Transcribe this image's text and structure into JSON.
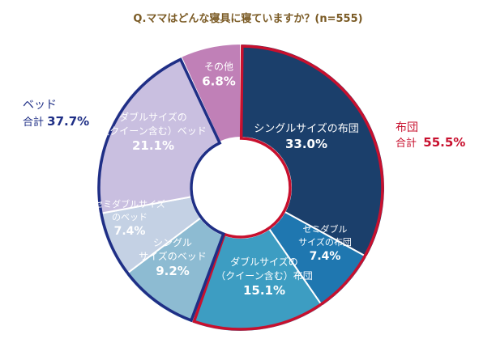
{
  "chart_data": {
    "type": "pie",
    "title": "Q.ママはどんな寝具に寝ていますか？(n=555)",
    "unit": "%",
    "categories": [
      "シングルサイズの布団",
      "セミダブルサイズの布団",
      "ダブルサイズの（クイーン含む）布団",
      "シングルサイズのベッド",
      "セミダブルサイズのベッド",
      "ダブルサイズの（クイーン含む）ベッド",
      "その他"
    ],
    "values": [
      33.0,
      7.4,
      15.1,
      9.2,
      7.4,
      21.1,
      6.8
    ],
    "slices": [
      {
        "label_lines": [
          "シングルサイズの布団"
        ],
        "value_text": "33.0%",
        "color": "#1b3f6b"
      },
      {
        "label_lines": [
          "セミダブル",
          "サイズの布団"
        ],
        "value_text": "7.4%",
        "color": "#1f77b0"
      },
      {
        "label_lines": [
          "ダブルサイズの",
          "（クイーン含む）布団"
        ],
        "value_text": "15.1%",
        "color": "#3d9dc2"
      },
      {
        "label_lines": [
          "シングル",
          "サイズのベッド"
        ],
        "value_text": "9.2%",
        "color": "#8dbbd2"
      },
      {
        "label_lines": [
          "セミダブルサイズ",
          "のベッド"
        ],
        "value_text": "7.4%",
        "color": "#c4d1e4"
      },
      {
        "label_lines": [
          "ダブルサイズの",
          "（クイーン含む）ベッド"
        ],
        "value_text": "21.1%",
        "color": "#c9bfe0"
      },
      {
        "label_lines": [
          "その他"
        ],
        "value_text": "6.8%",
        "color": "#c080b7"
      }
    ],
    "groups": [
      {
        "name": "布団",
        "total_label": "合計",
        "total_value": "55.5%",
        "color": "#c8102e",
        "slices": [
          0,
          1,
          2
        ]
      },
      {
        "name": "ベッド",
        "total_label": "合計",
        "total_value": "37.7%",
        "color": "#1f2f86",
        "slices": [
          3,
          4,
          5
        ]
      }
    ]
  }
}
